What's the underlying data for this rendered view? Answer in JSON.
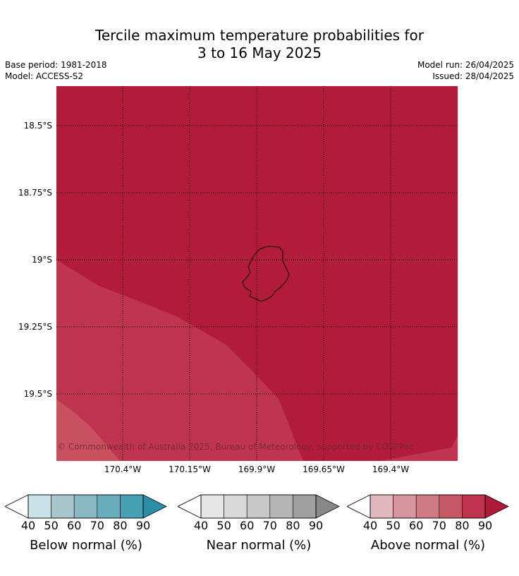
{
  "title_line1": "Tercile maximum temperature probabilities for",
  "title_line2": "3 to 16 May 2025",
  "base_period": "Base period: 1981-2018",
  "model": "Model: ACCESS-S2",
  "model_run": "Model run: 26/04/2025",
  "issued": "Issued: 28/04/2025",
  "credit": "© Commonwealth of Australia 2025, Bureau of Meteorology, supported by COSPPac",
  "lat_labels": [
    "18.5°S",
    "18.75°S",
    "19°S",
    "19.25°S",
    "19.5°S"
  ],
  "lon_labels": [
    "170.4°W",
    "170.15°W",
    "169.9°W",
    "169.65°W",
    "169.4°W"
  ],
  "colors": {
    "above_90": "#b21c3a",
    "above_80": "#bf3550",
    "above_70": "#c8505f",
    "below": [
      "#c9e2e8",
      "#a8c6cc",
      "#8ab7c4",
      "#6aaebe",
      "#45a0b2",
      "#2c8ea6"
    ],
    "near": [
      "#e6e6e6",
      "#d9d9d9",
      "#c8c8c8",
      "#b5b5b5",
      "#a0a0a0",
      "#888888"
    ],
    "above": [
      "#e1b8bd",
      "#d5969f",
      "#cf7b85",
      "#c75866",
      "#be334d",
      "#ae1839"
    ]
  },
  "colorbars": [
    {
      "name": "below",
      "label": "Below normal (%)",
      "ticks": [
        "40",
        "50",
        "60",
        "70",
        "80",
        "90"
      ]
    },
    {
      "name": "near",
      "label": "Near normal (%)",
      "ticks": [
        "40",
        "50",
        "60",
        "70",
        "80",
        "90"
      ]
    },
    {
      "name": "above",
      "label": "Above normal (%)",
      "ticks": [
        "40",
        "50",
        "60",
        "70",
        "80",
        "90"
      ]
    }
  ]
}
